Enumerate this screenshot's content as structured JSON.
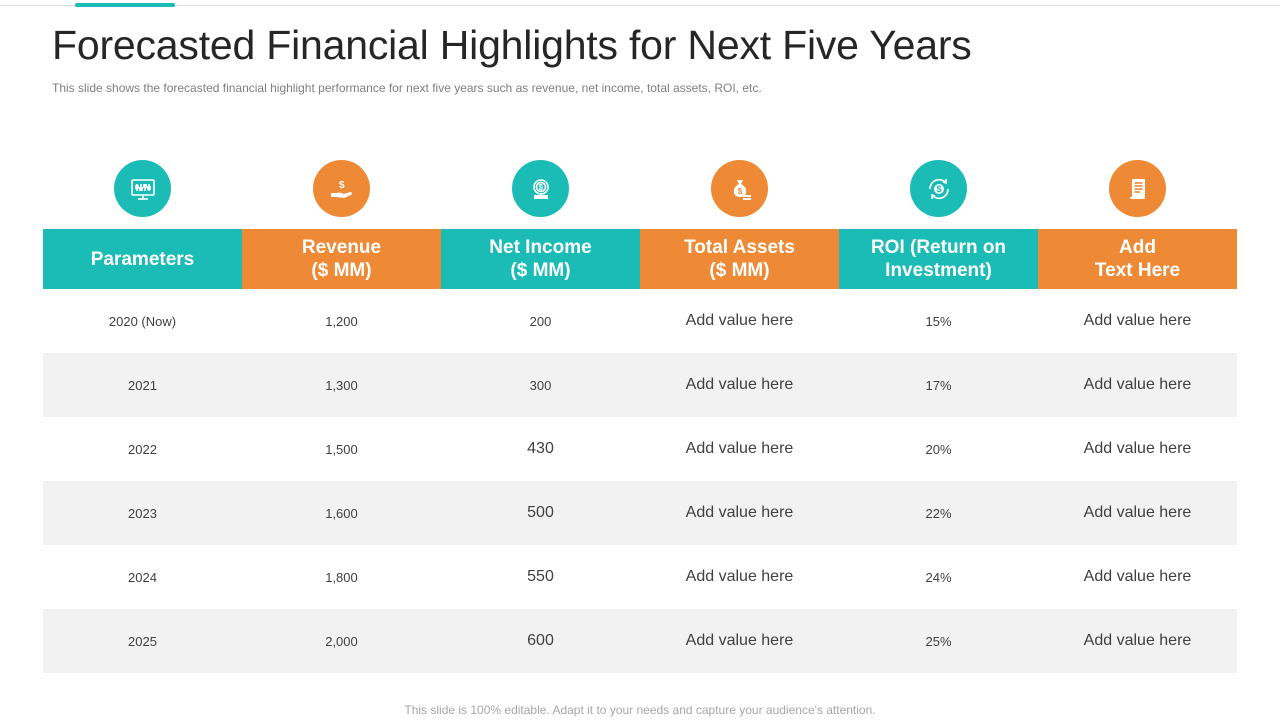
{
  "slide": {
    "title": "Forecasted Financial Highlights for Next Five Years",
    "subtitle": "This slide shows the forecasted financial highlight performance  for next five  years such as revenue,  net income, total assets, ROI, etc.",
    "footer": "This slide is 100% editable. Adapt it to your needs and capture your audience's attention."
  },
  "colors": {
    "teal": "#1bbcb6",
    "orange": "#ee8a36",
    "row_shade": "#f2f2f2"
  },
  "table": {
    "headers": [
      {
        "label": "Parameters",
        "icon": "computer-monitor-icon",
        "color": "teal"
      },
      {
        "label": "Revenue\n($ MM)",
        "icon": "money-hand-icon",
        "color": "orange"
      },
      {
        "label": "Net Income\n($ MM)",
        "icon": "dollar-coin-icon",
        "color": "teal"
      },
      {
        "label": "Total Assets\n($ MM)",
        "icon": "money-bag-icon",
        "color": "orange"
      },
      {
        "label": "ROI (Return on\nInvestment)",
        "icon": "dollar-exchange-icon",
        "color": "teal"
      },
      {
        "label": "Add\nText Here",
        "icon": "document-scroll-icon",
        "color": "orange"
      }
    ],
    "rows": [
      [
        "2020 (Now)",
        "1,200",
        "200",
        "Add value here",
        "15%",
        "Add value here"
      ],
      [
        "2021",
        "1,300",
        "300",
        "Add value here",
        "17%",
        "Add value here"
      ],
      [
        "2022",
        "1,500",
        "430",
        "Add value here",
        "20%",
        "Add value here"
      ],
      [
        "2023",
        "1,600",
        "500",
        "Add value here",
        "22%",
        "Add value here"
      ],
      [
        "2024",
        "1,800",
        "550",
        "Add value here",
        "24%",
        "Add value here"
      ],
      [
        "2025",
        "2,000",
        "600",
        "Add value here",
        "25%",
        "Add value here"
      ]
    ]
  }
}
